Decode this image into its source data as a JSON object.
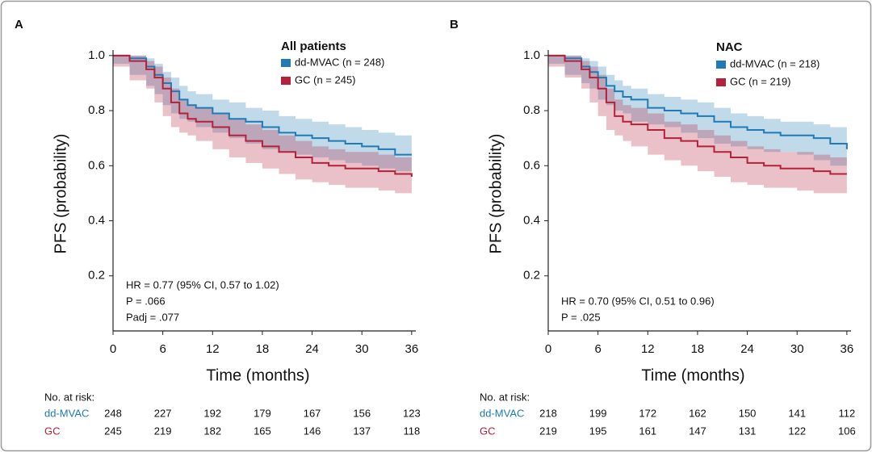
{
  "chart_data": [
    {
      "type": "line",
      "step": true,
      "panel": "A",
      "legend_title": "All patients",
      "annotations": [
        "HR = 0.77 (95% CI, 0.57 to 1.02)",
        "P = .066",
        "Padj = .077"
      ],
      "xlabel": "Time (months)",
      "ylabel": "PFS (probability)",
      "x": [
        0,
        2,
        4,
        5,
        6,
        7,
        8,
        9,
        10,
        12,
        14,
        16,
        18,
        20,
        22,
        24,
        26,
        28,
        30,
        32,
        34,
        36
      ],
      "xlim": [
        0,
        36.5
      ],
      "xticks": [
        0,
        6,
        12,
        18,
        24,
        30,
        36
      ],
      "ylim": [
        0,
        1.02
      ],
      "yticks": [
        0.2,
        0.4,
        0.6,
        0.8,
        {
          "value": 1,
          "label": "1.0"
        }
      ],
      "series": [
        {
          "name": "dd-MVAC (n = 248)",
          "color": "#1f7ab5",
          "values": [
            1,
            0.99,
            0.96,
            0.93,
            0.9,
            0.87,
            0.84,
            0.82,
            0.81,
            0.79,
            0.77,
            0.76,
            0.74,
            0.72,
            0.71,
            0.7,
            0.69,
            0.68,
            0.67,
            0.66,
            0.64,
            0.64
          ],
          "upper": [
            1,
            1,
            0.99,
            0.97,
            0.94,
            0.92,
            0.89,
            0.87,
            0.86,
            0.84,
            0.83,
            0.81,
            0.8,
            0.78,
            0.77,
            0.76,
            0.75,
            0.74,
            0.73,
            0.72,
            0.71,
            0.7
          ],
          "lower": [
            1,
            0.97,
            0.93,
            0.89,
            0.86,
            0.82,
            0.79,
            0.77,
            0.76,
            0.74,
            0.72,
            0.7,
            0.68,
            0.66,
            0.65,
            0.64,
            0.63,
            0.62,
            0.61,
            0.6,
            0.59,
            0.58
          ]
        },
        {
          "name": "GC (n = 245)",
          "color": "#b5203a",
          "values": [
            1,
            0.98,
            0.95,
            0.92,
            0.88,
            0.83,
            0.79,
            0.77,
            0.76,
            0.74,
            0.71,
            0.69,
            0.67,
            0.65,
            0.63,
            0.61,
            0.6,
            0.59,
            0.59,
            0.58,
            0.57,
            0.56
          ],
          "upper": [
            1,
            1,
            0.98,
            0.96,
            0.92,
            0.88,
            0.84,
            0.82,
            0.81,
            0.79,
            0.77,
            0.75,
            0.73,
            0.71,
            0.69,
            0.67,
            0.66,
            0.65,
            0.65,
            0.64,
            0.63,
            0.62
          ],
          "lower": [
            1,
            0.96,
            0.91,
            0.88,
            0.83,
            0.78,
            0.74,
            0.72,
            0.71,
            0.69,
            0.66,
            0.63,
            0.61,
            0.59,
            0.57,
            0.55,
            0.54,
            0.53,
            0.52,
            0.52,
            0.51,
            0.5
          ]
        }
      ],
      "risk_table": {
        "title": "No. at risk:",
        "rows": [
          {
            "name": "dd-MVAC",
            "values": [
              248,
              227,
              192,
              179,
              167,
              156,
              123
            ]
          },
          {
            "name": "GC",
            "values": [
              245,
              219,
              182,
              165,
              146,
              137,
              118
            ]
          }
        ]
      }
    },
    {
      "type": "line",
      "step": true,
      "panel": "B",
      "legend_title": "NAC",
      "annotations": [
        "HR = 0.70 (95% CI, 0.51 to 0.96)",
        "P = .025"
      ],
      "xlabel": "Time (months)",
      "ylabel": "PFS (probability)",
      "x": [
        0,
        2,
        4,
        5,
        6,
        7,
        8,
        9,
        10,
        12,
        14,
        16,
        18,
        20,
        22,
        24,
        26,
        28,
        30,
        32,
        34,
        36
      ],
      "xlim": [
        0,
        36.5
      ],
      "xticks": [
        0,
        6,
        12,
        18,
        24,
        30,
        36
      ],
      "ylim": [
        0,
        1.02
      ],
      "yticks": [
        0.2,
        0.4,
        0.6,
        0.8,
        {
          "value": 1,
          "label": "1.0"
        }
      ],
      "series": [
        {
          "name": "dd-MVAC (n = 218)",
          "color": "#1f7ab5",
          "values": [
            1,
            0.99,
            0.96,
            0.94,
            0.92,
            0.89,
            0.87,
            0.85,
            0.84,
            0.81,
            0.8,
            0.79,
            0.78,
            0.76,
            0.74,
            0.73,
            0.72,
            0.71,
            0.71,
            0.7,
            0.68,
            0.66
          ],
          "upper": [
            1,
            1,
            0.99,
            0.98,
            0.96,
            0.93,
            0.91,
            0.89,
            0.88,
            0.86,
            0.85,
            0.84,
            0.83,
            0.81,
            0.79,
            0.78,
            0.77,
            0.76,
            0.76,
            0.75,
            0.74,
            0.73
          ],
          "lower": [
            1,
            0.97,
            0.93,
            0.9,
            0.88,
            0.84,
            0.82,
            0.8,
            0.79,
            0.76,
            0.75,
            0.74,
            0.72,
            0.7,
            0.68,
            0.67,
            0.66,
            0.65,
            0.65,
            0.64,
            0.62,
            0.6
          ]
        },
        {
          "name": "GC (n = 219)",
          "color": "#b5203a",
          "values": [
            1,
            0.98,
            0.95,
            0.92,
            0.88,
            0.83,
            0.78,
            0.76,
            0.75,
            0.73,
            0.7,
            0.69,
            0.67,
            0.65,
            0.63,
            0.61,
            0.6,
            0.59,
            0.59,
            0.58,
            0.57,
            0.57
          ],
          "upper": [
            1,
            1,
            0.98,
            0.96,
            0.93,
            0.88,
            0.84,
            0.82,
            0.81,
            0.79,
            0.76,
            0.75,
            0.73,
            0.71,
            0.69,
            0.67,
            0.66,
            0.65,
            0.65,
            0.64,
            0.63,
            0.63
          ],
          "lower": [
            1,
            0.96,
            0.92,
            0.88,
            0.83,
            0.78,
            0.73,
            0.71,
            0.69,
            0.67,
            0.64,
            0.62,
            0.6,
            0.58,
            0.56,
            0.54,
            0.53,
            0.52,
            0.52,
            0.51,
            0.5,
            0.5
          ]
        }
      ],
      "risk_table": {
        "title": "No. at risk:",
        "rows": [
          {
            "name": "dd-MVAC",
            "values": [
              218,
              199,
              172,
              162,
              150,
              141,
              112
            ]
          },
          {
            "name": "GC",
            "values": [
              219,
              195,
              161,
              147,
              131,
              122,
              106
            ]
          }
        ]
      }
    }
  ]
}
